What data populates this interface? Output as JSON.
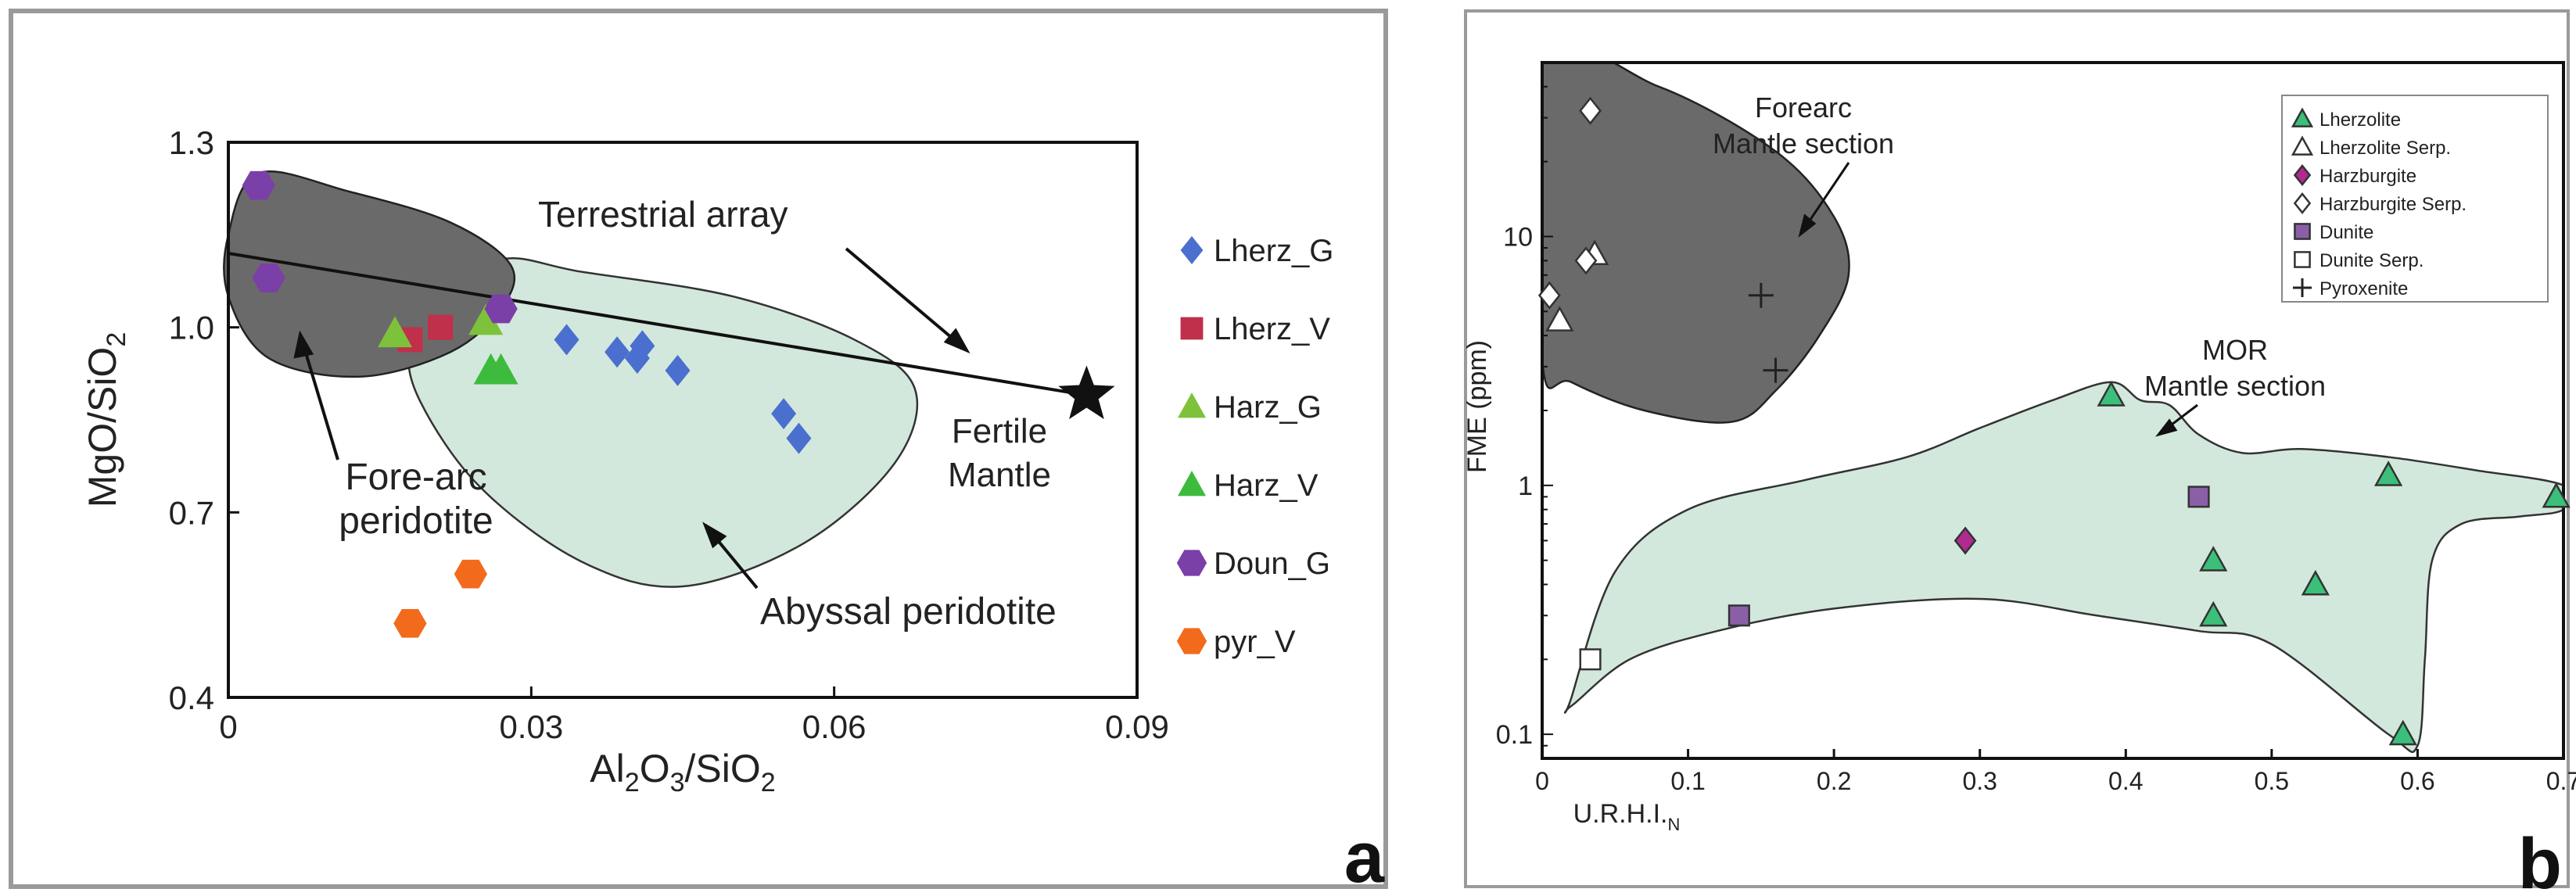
{
  "chart_data": [
    {
      "type": "scatter",
      "panel_label": "a",
      "xlabel_main": "Al",
      "xlabel_sub1": "2",
      "xlabel_mid": "O",
      "xlabel_sub2": "3",
      "xlabel_end": "/SiO",
      "xlabel_sub3": "2",
      "ylabel_main": "MgO/SiO",
      "ylabel_sub": "2",
      "xlim": [
        0,
        0.09
      ],
      "ylim": [
        0.4,
        1.3
      ],
      "xticks": [
        "0",
        "0.03",
        "0.06",
        "0.09"
      ],
      "yticks": [
        "0.4",
        "0.7",
        "1.0",
        "1.3"
      ],
      "xtick_values": [
        0,
        0.03,
        0.06,
        0.09
      ],
      "ytick_values": [
        0.4,
        0.7,
        1.0,
        1.3
      ],
      "annotations": {
        "terrestrial": "Terrestrial array",
        "fertile_1": "Fertile",
        "fertile_2": "Mantle",
        "forearc_1": "Fore-arc",
        "forearc_2": "peridotite",
        "abyssal": "Abyssal peridotite"
      },
      "terrestrial_line": [
        [
          0,
          1.12
        ],
        [
          0.085,
          0.89
        ]
      ],
      "fertile_mantle": [
        0.085,
        0.89
      ],
      "forearc_field": [
        [
          0.003,
          1.25
        ],
        [
          0.012,
          1.22
        ],
        [
          0.022,
          1.17
        ],
        [
          0.028,
          1.1
        ],
        [
          0.027,
          1.03
        ],
        [
          0.022,
          0.96
        ],
        [
          0.013,
          0.92
        ],
        [
          0.004,
          0.95
        ],
        [
          0.0,
          1.05
        ],
        [
          0.0,
          1.15
        ]
      ],
      "abyssal_field": [
        [
          0.027,
          1.11
        ],
        [
          0.035,
          1.09
        ],
        [
          0.05,
          1.05
        ],
        [
          0.062,
          0.98
        ],
        [
          0.068,
          0.9
        ],
        [
          0.066,
          0.78
        ],
        [
          0.057,
          0.65
        ],
        [
          0.045,
          0.58
        ],
        [
          0.035,
          0.62
        ],
        [
          0.025,
          0.74
        ],
        [
          0.019,
          0.88
        ],
        [
          0.018,
          0.97
        ],
        [
          0.021,
          1.04
        ]
      ],
      "series": [
        {
          "name": "Lherz_G",
          "color": "#4a6fcf",
          "marker": "diamond",
          "points": [
            [
              0.0335,
              0.98
            ],
            [
              0.0385,
              0.96
            ],
            [
              0.0405,
              0.95
            ],
            [
              0.041,
              0.97
            ],
            [
              0.0445,
              0.93
            ],
            [
              0.055,
              0.86
            ],
            [
              0.0565,
              0.82
            ]
          ]
        },
        {
          "name": "Lherz_V",
          "color": "#c0304a",
          "marker": "square",
          "points": [
            [
              0.018,
              0.98
            ],
            [
              0.021,
              1.0
            ]
          ]
        },
        {
          "name": "Harz_G",
          "color": "#7ec23b",
          "marker": "triangle",
          "points": [
            [
              0.0165,
              0.99
            ],
            [
              0.0255,
              1.01
            ]
          ]
        },
        {
          "name": "Harz_V",
          "color": "#3dbb3d",
          "marker": "triangle",
          "points": [
            [
              0.026,
              0.93
            ],
            [
              0.027,
              0.93
            ]
          ]
        },
        {
          "name": "Doun_G",
          "color": "#7b3fa8",
          "marker": "hexagon",
          "points": [
            [
              0.003,
              1.23
            ],
            [
              0.004,
              1.08
            ],
            [
              0.027,
              1.03
            ]
          ]
        },
        {
          "name": "pyr_V",
          "color": "#f26b1d",
          "marker": "hexagon",
          "points": [
            [
              0.018,
              0.52
            ],
            [
              0.024,
              0.6
            ]
          ]
        }
      ]
    },
    {
      "type": "scatter",
      "panel_label": "b",
      "xlabel_main": "U.R.H.I.",
      "xlabel_sub": "N",
      "ylabel": "FME (ppm)",
      "xlim": [
        0,
        0.7
      ],
      "ylim_log": [
        0.08,
        50
      ],
      "xticks": [
        "0",
        "0.1",
        "0.2",
        "0.3",
        "0.4",
        "0.5",
        "0.6",
        "0.7"
      ],
      "xtick_values": [
        0,
        0.1,
        0.2,
        0.3,
        0.4,
        0.5,
        0.6,
        0.7
      ],
      "yticks": [
        "0.1",
        "1",
        "10"
      ],
      "ytick_values": [
        0.1,
        1,
        10
      ],
      "annotations": {
        "forearc_1": "Forearc",
        "forearc_2": "Mantle section",
        "mor_1": "MOR",
        "mor_2": "Mantle section"
      },
      "forearc_field": [
        [
          0.0,
          50
        ],
        [
          0.08,
          40
        ],
        [
          0.16,
          22
        ],
        [
          0.2,
          12
        ],
        [
          0.21,
          7
        ],
        [
          0.19,
          4
        ],
        [
          0.16,
          2.4
        ],
        [
          0.13,
          1.8
        ],
        [
          0.07,
          2.0
        ],
        [
          0.02,
          2.6
        ],
        [
          0.0,
          3.2
        ]
      ],
      "mor_field": [
        [
          0.02,
          0.14
        ],
        [
          0.05,
          0.45
        ],
        [
          0.1,
          0.8
        ],
        [
          0.18,
          1.05
        ],
        [
          0.25,
          1.3
        ],
        [
          0.3,
          1.7
        ],
        [
          0.35,
          2.2
        ],
        [
          0.39,
          2.6
        ],
        [
          0.41,
          2.2
        ],
        [
          0.43,
          2.1
        ],
        [
          0.45,
          1.6
        ],
        [
          0.48,
          1.35
        ],
        [
          0.52,
          1.4
        ],
        [
          0.58,
          1.3
        ],
        [
          0.64,
          1.15
        ],
        [
          0.7,
          1.0
        ],
        [
          0.7,
          0.8
        ],
        [
          0.67,
          0.75
        ],
        [
          0.63,
          0.7
        ],
        [
          0.61,
          0.5
        ],
        [
          0.605,
          0.2
        ],
        [
          0.6,
          0.09
        ],
        [
          0.58,
          0.1
        ],
        [
          0.5,
          0.23
        ],
        [
          0.45,
          0.26
        ],
        [
          0.38,
          0.3
        ],
        [
          0.3,
          0.35
        ],
        [
          0.2,
          0.32
        ],
        [
          0.12,
          0.26
        ],
        [
          0.06,
          0.2
        ],
        [
          0.02,
          0.13
        ]
      ],
      "legend": [
        {
          "name": "Lherzolite",
          "marker": "triangle",
          "color": "#3cbf7a",
          "filled": true
        },
        {
          "name": "Lherzolite Serp.",
          "marker": "triangle",
          "color": "#3cbf7a",
          "filled": false
        },
        {
          "name": "Harzburgite",
          "marker": "diamond",
          "color": "#b02a8f",
          "filled": true
        },
        {
          "name": "Harzburgite Serp.",
          "marker": "diamond",
          "color": "#b02a8f",
          "filled": false
        },
        {
          "name": "Dunite",
          "marker": "square",
          "color": "#8a5fa8",
          "filled": true
        },
        {
          "name": "Dunite Serp.",
          "marker": "square",
          "color": "#8a5fa8",
          "filled": false
        },
        {
          "name": "Pyroxenite",
          "marker": "plus",
          "color": "#222222",
          "filled": true
        }
      ],
      "series": [
        {
          "name": "Lherzolite",
          "points": [
            [
              0.39,
              2.3
            ],
            [
              0.46,
              0.5
            ],
            [
              0.46,
              0.3
            ],
            [
              0.53,
              0.4
            ],
            [
              0.58,
              1.1
            ],
            [
              0.59,
              0.1
            ],
            [
              0.695,
              0.9
            ]
          ]
        },
        {
          "name": "Lherzolite Serp.",
          "points": [
            [
              0.012,
              4.6
            ],
            [
              0.036,
              8.5
            ]
          ]
        },
        {
          "name": "Harzburgite",
          "points": [
            [
              0.29,
              0.6
            ]
          ]
        },
        {
          "name": "Harzburgite Serp.",
          "points": [
            [
              0.005,
              5.8
            ],
            [
              0.03,
              8.0
            ],
            [
              0.033,
              32
            ]
          ]
        },
        {
          "name": "Dunite",
          "points": [
            [
              0.45,
              0.9
            ],
            [
              0.135,
              0.3
            ]
          ]
        },
        {
          "name": "Dunite Serp.",
          "points": [
            [
              0.033,
              0.2
            ]
          ]
        },
        {
          "name": "Pyroxenite",
          "points": [
            [
              0.15,
              5.8
            ],
            [
              0.16,
              2.9
            ]
          ]
        }
      ]
    }
  ]
}
